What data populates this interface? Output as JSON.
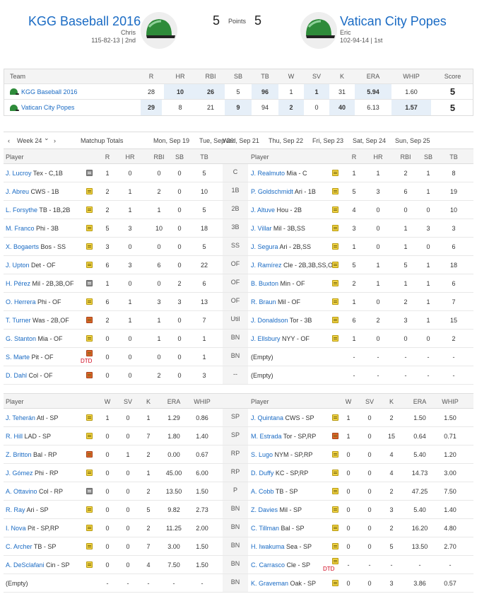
{
  "header": {
    "home": {
      "name": "KGG Baseball 2016",
      "manager": "Chris",
      "record": "115-82-13 | 2nd",
      "points": "5"
    },
    "away": {
      "name": "Vatican City Popes",
      "manager": "Eric",
      "record": "102-94-14 | 1st",
      "points": "5"
    },
    "points_label": "Points"
  },
  "summary": {
    "headers": [
      "Team",
      "R",
      "HR",
      "RBI",
      "SB",
      "TB",
      "W",
      "SV",
      "K",
      "ERA",
      "WHIP",
      "Score"
    ],
    "rows": [
      {
        "team": "KGG Baseball 2016",
        "vals": [
          "28",
          "10",
          "26",
          "5",
          "96",
          "1",
          "1",
          "31",
          "5.94",
          "1.60"
        ],
        "score": "5",
        "hl": [
          1,
          2,
          4,
          6,
          8
        ]
      },
      {
        "team": "Vatican City Popes",
        "vals": [
          "29",
          "8",
          "21",
          "9",
          "94",
          "2",
          "0",
          "40",
          "6.13",
          "1.57"
        ],
        "score": "5",
        "hl": [
          0,
          3,
          5,
          7,
          9
        ]
      }
    ]
  },
  "week_nav": {
    "prev": "‹",
    "week": "Week 24",
    "caret": "⌄",
    "next": "›",
    "items": [
      "Matchup Totals",
      "Mon, Sep 19",
      "Tue, Sep 20",
      "Wed, Sep 21",
      "Thu, Sep 22",
      "Fri, Sep 23",
      "Sat, Sep 24",
      "Sun, Sep 25"
    ]
  },
  "batters": {
    "headers": [
      "Player",
      "R",
      "HR",
      "RBI",
      "SB",
      "TB"
    ],
    "rows": [
      {
        "slot": "C",
        "left": {
          "name": "J. Lucroy",
          "team": "Tex - C,1B",
          "note": "grey",
          "stats": [
            "1",
            "0",
            "0",
            "0",
            "5"
          ]
        },
        "right": {
          "name": "J. Realmuto",
          "team": "Mia - C",
          "note": "yellow",
          "stats": [
            "1",
            "1",
            "2",
            "1",
            "8"
          ]
        }
      },
      {
        "slot": "1B",
        "left": {
          "name": "J. Abreu",
          "team": "CWS - 1B",
          "note": "yellow",
          "stats": [
            "2",
            "1",
            "2",
            "0",
            "10"
          ]
        },
        "right": {
          "name": "P. Goldschmidt",
          "team": "Ari - 1B",
          "note": "yellow",
          "stats": [
            "5",
            "3",
            "6",
            "1",
            "19"
          ]
        }
      },
      {
        "slot": "2B",
        "left": {
          "name": "L. Forsythe",
          "team": "TB - 1B,2B",
          "note": "yellow",
          "stats": [
            "2",
            "1",
            "1",
            "0",
            "5"
          ]
        },
        "right": {
          "name": "J. Altuve",
          "team": "Hou - 2B",
          "note": "yellow",
          "stats": [
            "4",
            "0",
            "0",
            "0",
            "10"
          ]
        }
      },
      {
        "slot": "3B",
        "left": {
          "name": "M. Franco",
          "team": "Phi - 3B",
          "note": "yellow",
          "stats": [
            "5",
            "3",
            "10",
            "0",
            "18"
          ]
        },
        "right": {
          "name": "J. Villar",
          "team": "Mil - 3B,SS",
          "note": "yellow",
          "stats": [
            "3",
            "0",
            "1",
            "3",
            "3"
          ]
        }
      },
      {
        "slot": "SS",
        "left": {
          "name": "X. Bogaerts",
          "team": "Bos - SS",
          "note": "yellow",
          "stats": [
            "3",
            "0",
            "0",
            "0",
            "5"
          ]
        },
        "right": {
          "name": "J. Segura",
          "team": "Ari - 2B,SS",
          "note": "yellow",
          "stats": [
            "1",
            "0",
            "1",
            "0",
            "6"
          ]
        }
      },
      {
        "slot": "OF",
        "left": {
          "name": "J. Upton",
          "team": "Det - OF",
          "note": "yellow",
          "stats": [
            "6",
            "3",
            "6",
            "0",
            "22"
          ]
        },
        "right": {
          "name": "J. Ramírez",
          "team": "Cle - 2B,3B,SS,O",
          "note": "yellow",
          "stats": [
            "5",
            "1",
            "5",
            "1",
            "18"
          ]
        }
      },
      {
        "slot": "OF",
        "left": {
          "name": "H. Pérez",
          "team": "Mil - 2B,3B,OF",
          "note": "grey",
          "stats": [
            "1",
            "0",
            "0",
            "2",
            "6"
          ]
        },
        "right": {
          "name": "B. Buxton",
          "team": "Min - OF",
          "note": "yellow",
          "stats": [
            "2",
            "1",
            "1",
            "1",
            "6"
          ]
        }
      },
      {
        "slot": "OF",
        "left": {
          "name": "O. Herrera",
          "team": "Phi - OF",
          "note": "yellow",
          "stats": [
            "6",
            "1",
            "3",
            "3",
            "13"
          ]
        },
        "right": {
          "name": "R. Braun",
          "team": "Mil - OF",
          "note": "yellow",
          "stats": [
            "1",
            "0",
            "2",
            "1",
            "7"
          ]
        }
      },
      {
        "slot": "Util",
        "left": {
          "name": "T. Turner",
          "team": "Was - 2B,OF",
          "note": "red",
          "stats": [
            "2",
            "1",
            "1",
            "0",
            "7"
          ]
        },
        "right": {
          "name": "J. Donaldson",
          "team": "Tor - 3B",
          "note": "yellow",
          "stats": [
            "6",
            "2",
            "3",
            "1",
            "15"
          ]
        }
      },
      {
        "slot": "BN",
        "left": {
          "name": "G. Stanton",
          "team": "Mia - OF",
          "note": "yellow",
          "stats": [
            "0",
            "0",
            "1",
            "0",
            "1"
          ]
        },
        "right": {
          "name": "J. Ellsbury",
          "team": "NYY - OF",
          "note": "yellow",
          "stats": [
            "1",
            "0",
            "0",
            "0",
            "2"
          ]
        }
      },
      {
        "slot": "BN",
        "left": {
          "name": "S. Marte",
          "team": "Pit - OF",
          "note": "red",
          "dtd": "DTD",
          "stats": [
            "0",
            "0",
            "0",
            "0",
            "1"
          ]
        },
        "right": {
          "name": "(Empty)",
          "team": "",
          "note": "",
          "stats": [
            "-",
            "-",
            "-",
            "-",
            "-"
          ]
        }
      },
      {
        "slot": "--",
        "left": {
          "name": "D. Dahl",
          "team": "Col - OF",
          "note": "red",
          "stats": [
            "0",
            "0",
            "2",
            "0",
            "3"
          ]
        },
        "right": {
          "name": "(Empty)",
          "team": "",
          "note": "",
          "stats": [
            "-",
            "-",
            "-",
            "-",
            "-"
          ]
        }
      }
    ]
  },
  "pitchers": {
    "headers": [
      "Player",
      "W",
      "SV",
      "K",
      "ERA",
      "WHIP"
    ],
    "rows": [
      {
        "slot": "SP",
        "left": {
          "name": "J. Teherán",
          "team": "Atl - SP",
          "note": "yellow",
          "stats": [
            "1",
            "0",
            "1",
            "1.29",
            "0.86"
          ]
        },
        "right": {
          "name": "J. Quintana",
          "team": "CWS - SP",
          "note": "yellow",
          "stats": [
            "1",
            "0",
            "2",
            "1.50",
            "1.50"
          ]
        }
      },
      {
        "slot": "SP",
        "left": {
          "name": "R. Hill",
          "team": "LAD - SP",
          "note": "yellow",
          "stats": [
            "0",
            "0",
            "7",
            "1.80",
            "1.40"
          ]
        },
        "right": {
          "name": "M. Estrada",
          "team": "Tor - SP,RP",
          "note": "red",
          "stats": [
            "1",
            "0",
            "15",
            "0.64",
            "0.71"
          ]
        }
      },
      {
        "slot": "RP",
        "left": {
          "name": "Z. Britton",
          "team": "Bal - RP",
          "note": "red",
          "stats": [
            "0",
            "1",
            "2",
            "0.00",
            "0.67"
          ]
        },
        "right": {
          "name": "S. Lugo",
          "team": "NYM - SP,RP",
          "note": "yellow",
          "stats": [
            "0",
            "0",
            "4",
            "5.40",
            "1.20"
          ]
        }
      },
      {
        "slot": "RP",
        "left": {
          "name": "J. Gómez",
          "team": "Phi - RP",
          "note": "yellow",
          "stats": [
            "0",
            "0",
            "1",
            "45.00",
            "6.00"
          ]
        },
        "right": {
          "name": "D. Duffy",
          "team": "KC - SP,RP",
          "note": "yellow",
          "stats": [
            "0",
            "0",
            "4",
            "14.73",
            "3.00"
          ]
        }
      },
      {
        "slot": "P",
        "left": {
          "name": "A. Ottavino",
          "team": "Col - RP",
          "note": "grey",
          "stats": [
            "0",
            "0",
            "2",
            "13.50",
            "1.50"
          ]
        },
        "right": {
          "name": "A. Cobb",
          "team": "TB - SP",
          "note": "yellow",
          "stats": [
            "0",
            "0",
            "2",
            "47.25",
            "7.50"
          ]
        }
      },
      {
        "slot": "BN",
        "left": {
          "name": "R. Ray",
          "team": "Ari - SP",
          "note": "yellow",
          "stats": [
            "0",
            "0",
            "5",
            "9.82",
            "2.73"
          ]
        },
        "right": {
          "name": "Z. Davies",
          "team": "Mil - SP",
          "note": "yellow",
          "stats": [
            "0",
            "0",
            "3",
            "5.40",
            "1.40"
          ]
        }
      },
      {
        "slot": "BN",
        "left": {
          "name": "I. Nova",
          "team": "Pit - SP,RP",
          "note": "yellow",
          "stats": [
            "0",
            "0",
            "2",
            "11.25",
            "2.00"
          ]
        },
        "right": {
          "name": "C. Tillman",
          "team": "Bal - SP",
          "note": "yellow",
          "stats": [
            "0",
            "0",
            "2",
            "16.20",
            "4.80"
          ]
        }
      },
      {
        "slot": "BN",
        "left": {
          "name": "C. Archer",
          "team": "TB - SP",
          "note": "yellow",
          "stats": [
            "0",
            "0",
            "7",
            "3.00",
            "1.50"
          ]
        },
        "right": {
          "name": "H. Iwakuma",
          "team": "Sea - SP",
          "note": "yellow",
          "stats": [
            "0",
            "0",
            "5",
            "13.50",
            "2.70"
          ]
        }
      },
      {
        "slot": "BN",
        "left": {
          "name": "A. DeSclafani",
          "team": "Cin - SP",
          "note": "yellow",
          "stats": [
            "0",
            "0",
            "4",
            "7.50",
            "1.50"
          ]
        },
        "right": {
          "name": "C. Carrasco",
          "team": "Cle - SP",
          "note": "yellow",
          "dtd": "DTD",
          "stats": [
            "-",
            "-",
            "-",
            "-",
            "-"
          ]
        }
      },
      {
        "slot": "BN",
        "left": {
          "name": "(Empty)",
          "team": "",
          "note": "",
          "stats": [
            "-",
            "-",
            "-",
            "-",
            "-"
          ]
        },
        "right": {
          "name": "K. Graveman",
          "team": "Oak - SP",
          "note": "yellow",
          "stats": [
            "0",
            "0",
            "3",
            "3.86",
            "0.57"
          ]
        }
      }
    ]
  },
  "colors": {
    "link": "#1a6bc4",
    "highlight": "#e6eff8",
    "helmet": "#2e8b3a",
    "note_yellow": "#f0d244",
    "note_red": "#e0632c",
    "dtd": "#d0021b"
  }
}
